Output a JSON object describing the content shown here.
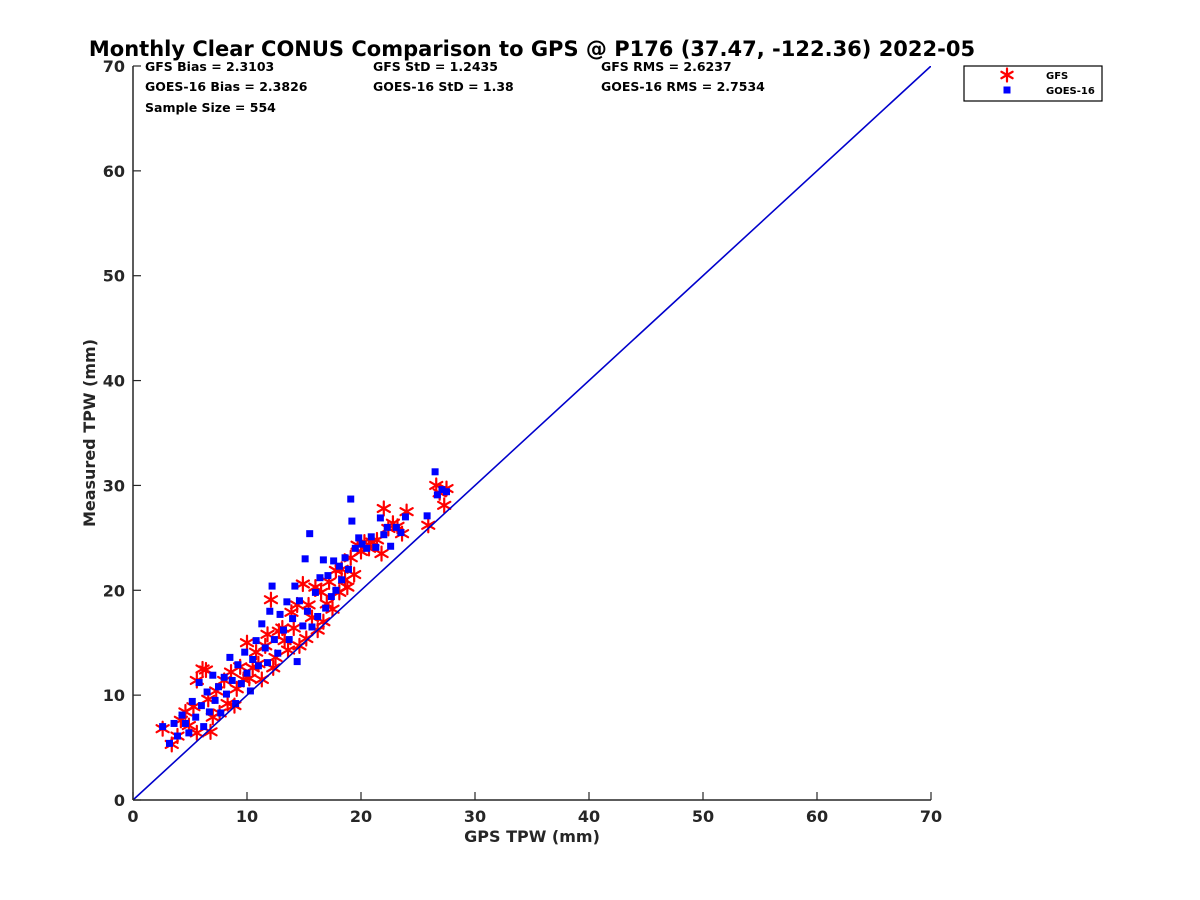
{
  "chart_data": {
    "type": "scatter",
    "title": "Monthly Clear CONUS Comparison to GPS @ P176 (37.47, -122.36) 2022-05",
    "xlabel": "GPS TPW (mm)",
    "ylabel": "Measured TPW (mm)",
    "xlim": [
      0,
      70
    ],
    "ylim": [
      0,
      70
    ],
    "xticks": [
      "0",
      "10",
      "20",
      "30",
      "40",
      "50",
      "60",
      "70"
    ],
    "yticks": [
      "0",
      "10",
      "20",
      "30",
      "40",
      "50",
      "60",
      "70"
    ],
    "grid": false,
    "legend_position": "outside-top-right",
    "stats": {
      "gfs_bias": "GFS Bias = 2.3103",
      "gfs_std": "GFS StD = 1.2435",
      "gfs_rms": "GFS RMS = 2.6237",
      "goes_bias": "GOES-16 Bias = 2.3826",
      "goes_std": "GOES-16 StD = 1.38",
      "goes_rms": "GOES-16 RMS = 2.7534",
      "sample_size": "Sample Size = 554"
    },
    "reference_line": {
      "x": [
        0,
        70
      ],
      "y": [
        0,
        70
      ],
      "color": "#0000cc"
    },
    "series": [
      {
        "name": "GFS",
        "marker": "asterisk",
        "color": "#ff0000",
        "points": [
          [
            2.6,
            6.8
          ],
          [
            3.4,
            5.3
          ],
          [
            3.9,
            6.1
          ],
          [
            4.2,
            7.6
          ],
          [
            4.6,
            8.4
          ],
          [
            4.9,
            7.1
          ],
          [
            5.3,
            8.9
          ],
          [
            5.6,
            6.4
          ],
          [
            5.6,
            11.4
          ],
          [
            6.1,
            12.5
          ],
          [
            6.4,
            12.4
          ],
          [
            6.6,
            9.6
          ],
          [
            6.8,
            6.5
          ],
          [
            7.0,
            7.9
          ],
          [
            7.3,
            10.4
          ],
          [
            7.6,
            8.3
          ],
          [
            8.0,
            11.4
          ],
          [
            8.3,
            9.2
          ],
          [
            8.6,
            12.2
          ],
          [
            8.9,
            9.0
          ],
          [
            9.1,
            10.6
          ],
          [
            9.4,
            12.7
          ],
          [
            9.7,
            11.5
          ],
          [
            10.0,
            15.0
          ],
          [
            10.2,
            11.6
          ],
          [
            10.5,
            12.6
          ],
          [
            10.8,
            14.1
          ],
          [
            11.0,
            13.0
          ],
          [
            11.3,
            11.5
          ],
          [
            11.6,
            14.7
          ],
          [
            11.8,
            15.8
          ],
          [
            12.1,
            19.1
          ],
          [
            12.3,
            12.6
          ],
          [
            12.5,
            13.6
          ],
          [
            12.8,
            16.1
          ],
          [
            13.1,
            16.4
          ],
          [
            13.3,
            15.2
          ],
          [
            13.6,
            14.3
          ],
          [
            13.9,
            17.9
          ],
          [
            14.1,
            16.4
          ],
          [
            14.4,
            18.6
          ],
          [
            14.6,
            14.7
          ],
          [
            14.9,
            20.6
          ],
          [
            15.2,
            15.4
          ],
          [
            15.4,
            18.6
          ],
          [
            15.7,
            17.4
          ],
          [
            16.0,
            20.3
          ],
          [
            16.2,
            16.2
          ],
          [
            16.5,
            19.8
          ],
          [
            16.7,
            17.0
          ],
          [
            17.0,
            18.7
          ],
          [
            17.2,
            20.8
          ],
          [
            17.5,
            18.2
          ],
          [
            17.8,
            21.9
          ],
          [
            18.1,
            19.8
          ],
          [
            18.3,
            22.0
          ],
          [
            18.6,
            21.0
          ],
          [
            18.8,
            20.3
          ],
          [
            19.1,
            23.1
          ],
          [
            19.4,
            21.5
          ],
          [
            19.7,
            24.3
          ],
          [
            20.0,
            23.7
          ],
          [
            20.3,
            24.6
          ],
          [
            20.7,
            24.0
          ],
          [
            21.0,
            24.6
          ],
          [
            21.4,
            24.8
          ],
          [
            21.8,
            23.5
          ],
          [
            22.0,
            27.8
          ],
          [
            22.4,
            25.9
          ],
          [
            22.8,
            26.4
          ],
          [
            23.2,
            26.1
          ],
          [
            23.6,
            25.4
          ],
          [
            24.0,
            27.5
          ],
          [
            25.9,
            26.2
          ],
          [
            26.6,
            30.0
          ],
          [
            26.9,
            29.3
          ],
          [
            27.3,
            28.1
          ],
          [
            27.5,
            29.7
          ]
        ]
      },
      {
        "name": "GOES-16",
        "marker": "square",
        "color": "#0000ff",
        "points": [
          [
            2.6,
            7.0
          ],
          [
            3.2,
            5.4
          ],
          [
            3.6,
            7.3
          ],
          [
            3.9,
            6.1
          ],
          [
            4.3,
            8.1
          ],
          [
            4.6,
            7.3
          ],
          [
            4.9,
            6.4
          ],
          [
            5.2,
            9.4
          ],
          [
            5.5,
            7.9
          ],
          [
            5.8,
            11.2
          ],
          [
            6.0,
            9.0
          ],
          [
            6.2,
            7.0
          ],
          [
            6.5,
            10.3
          ],
          [
            6.7,
            8.4
          ],
          [
            7.0,
            11.9
          ],
          [
            7.2,
            9.5
          ],
          [
            7.5,
            10.8
          ],
          [
            7.7,
            8.3
          ],
          [
            8.0,
            11.7
          ],
          [
            8.2,
            10.1
          ],
          [
            8.5,
            13.6
          ],
          [
            8.7,
            11.4
          ],
          [
            9.0,
            9.2
          ],
          [
            9.2,
            12.9
          ],
          [
            9.5,
            11.1
          ],
          [
            9.8,
            14.1
          ],
          [
            10.0,
            12.1
          ],
          [
            10.3,
            10.4
          ],
          [
            10.5,
            13.4
          ],
          [
            10.8,
            15.2
          ],
          [
            11.0,
            12.8
          ],
          [
            11.3,
            16.8
          ],
          [
            11.6,
            14.5
          ],
          [
            11.8,
            13.1
          ],
          [
            12.0,
            18.0
          ],
          [
            12.2,
            20.4
          ],
          [
            12.4,
            15.3
          ],
          [
            12.7,
            14.0
          ],
          [
            12.9,
            17.7
          ],
          [
            13.2,
            16.2
          ],
          [
            13.5,
            18.9
          ],
          [
            13.7,
            15.3
          ],
          [
            14.0,
            17.3
          ],
          [
            14.2,
            20.4
          ],
          [
            14.4,
            13.2
          ],
          [
            14.6,
            19.0
          ],
          [
            14.9,
            16.6
          ],
          [
            15.1,
            23.0
          ],
          [
            15.3,
            18.0
          ],
          [
            15.5,
            25.4
          ],
          [
            15.7,
            16.5
          ],
          [
            16.0,
            19.8
          ],
          [
            16.2,
            17.5
          ],
          [
            16.4,
            21.2
          ],
          [
            16.7,
            22.9
          ],
          [
            16.9,
            18.3
          ],
          [
            17.1,
            21.4
          ],
          [
            17.4,
            19.4
          ],
          [
            17.6,
            22.8
          ],
          [
            17.8,
            20.0
          ],
          [
            18.1,
            22.3
          ],
          [
            18.3,
            21.0
          ],
          [
            18.6,
            23.1
          ],
          [
            18.9,
            22.0
          ],
          [
            19.1,
            28.7
          ],
          [
            19.2,
            26.6
          ],
          [
            19.5,
            24.0
          ],
          [
            19.8,
            25.0
          ],
          [
            20.1,
            24.4
          ],
          [
            20.5,
            24.0
          ],
          [
            20.9,
            25.1
          ],
          [
            21.3,
            24.1
          ],
          [
            21.7,
            26.9
          ],
          [
            22.0,
            25.3
          ],
          [
            22.3,
            26.0
          ],
          [
            22.6,
            24.2
          ],
          [
            23.1,
            26.0
          ],
          [
            23.5,
            25.5
          ],
          [
            23.9,
            27.0
          ],
          [
            25.8,
            27.1
          ],
          [
            26.5,
            31.3
          ],
          [
            26.7,
            29.1
          ],
          [
            27.1,
            29.6
          ],
          [
            27.5,
            29.4
          ]
        ]
      }
    ]
  }
}
